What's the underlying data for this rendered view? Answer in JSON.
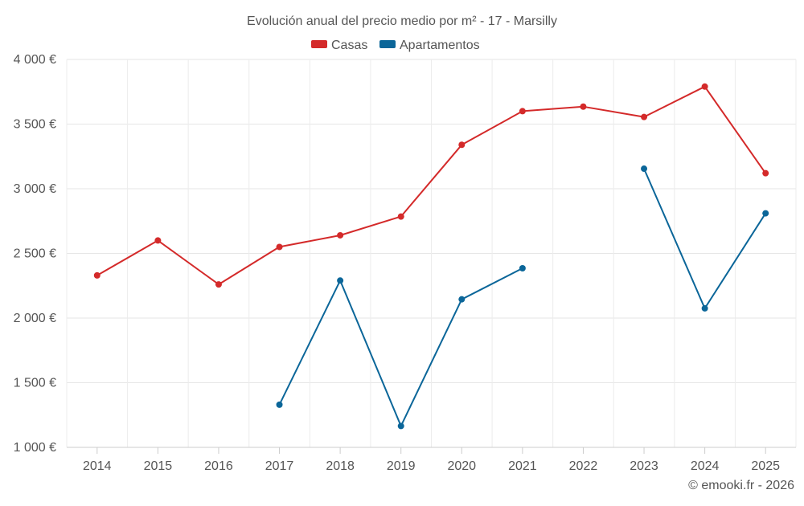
{
  "chart_data": {
    "type": "line",
    "title": "Evolución anual del precio medio por m² - 17 - Marsilly",
    "xlabel": "",
    "ylabel": "",
    "categories": [
      "2014",
      "2015",
      "2016",
      "2017",
      "2018",
      "2019",
      "2020",
      "2021",
      "2022",
      "2023",
      "2024",
      "2025"
    ],
    "ylim": [
      1000,
      4000
    ],
    "yticks": [
      1000,
      1500,
      2000,
      2500,
      3000,
      3500,
      4000
    ],
    "ytick_labels": [
      "1 000 €",
      "1 500 €",
      "2 000 €",
      "2 500 €",
      "3 000 €",
      "3 500 €",
      "4 000 €"
    ],
    "grid": true,
    "legend_position": "top-center",
    "series": [
      {
        "name": "Casas",
        "color": "#d42a2a",
        "values": [
          2330,
          2600,
          2260,
          2550,
          2640,
          2785,
          3340,
          3600,
          3635,
          3555,
          3790,
          3120
        ]
      },
      {
        "name": "Apartamentos",
        "color": "#0b6699",
        "values": [
          null,
          null,
          null,
          1330,
          2290,
          1165,
          2145,
          2385,
          null,
          3155,
          2075,
          2810
        ]
      }
    ],
    "credit": "© emooki.fr - 2026"
  }
}
